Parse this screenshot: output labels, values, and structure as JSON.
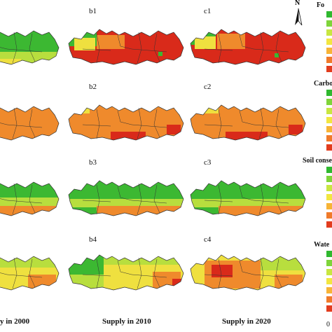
{
  "panels": {
    "rows": [
      {
        "labels": [
          "",
          "b1",
          "c1"
        ]
      },
      {
        "labels": [
          "",
          "b2",
          "c2"
        ]
      },
      {
        "labels": [
          "",
          "b3",
          "c3"
        ]
      },
      {
        "labels": [
          "",
          "b4",
          "c4"
        ]
      }
    ]
  },
  "columns": [
    {
      "title": "y in 2000"
    },
    {
      "title": "Supply in 2010"
    },
    {
      "title": "Supply in 2020"
    }
  ],
  "legends": [
    {
      "title": "Fo",
      "colors": [
        "#2fb82f",
        "#7fd43a",
        "#c8e641",
        "#f2e640",
        "#f7b436",
        "#f07a2a",
        "#e23c1e"
      ]
    },
    {
      "title": "Carbo",
      "colors": [
        "#2fb82f",
        "#7fd43a",
        "#c8e641",
        "#f2e640",
        "#f7b436",
        "#f07a2a",
        "#e23c1e"
      ]
    },
    {
      "title": "Soil conse",
      "colors": [
        "#2fb82f",
        "#7fd43a",
        "#c8e641",
        "#f2e640",
        "#f7b436",
        "#f07a2a",
        "#e23c1e"
      ]
    },
    {
      "title": "Wate",
      "colors": [
        "#2fb82f",
        "#7fd43a",
        "#c8e641",
        "#f2e640",
        "#f7b436",
        "#f07a2a",
        "#e23c1e"
      ],
      "bottom_tick": "0"
    }
  ],
  "north_arrow": {
    "letter": "N"
  },
  "map_colors": {
    "green": "#3cb832",
    "yellowgreen": "#b8de3e",
    "yellow": "#efe03f",
    "orange": "#ef8a2c",
    "red": "#d92a1a",
    "boundary": "#333333"
  }
}
